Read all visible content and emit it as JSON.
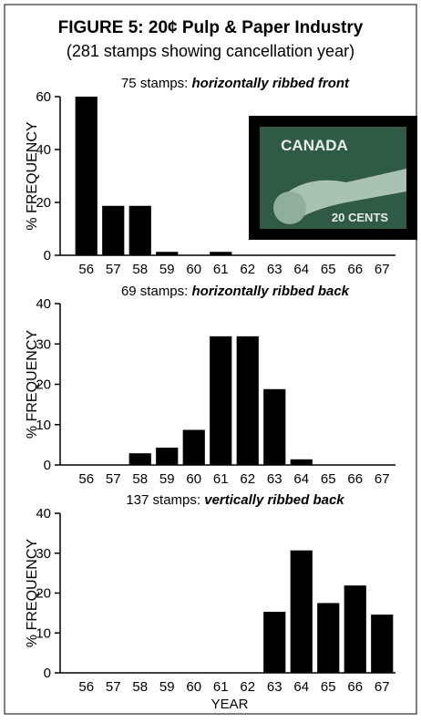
{
  "title": "FIGURE 5: 20¢ Pulp & Paper Industry",
  "subtitle": "(281 stamps showing cancellation year)",
  "stamp": {
    "country": "CANADA",
    "denomination": "20 CENTS"
  },
  "chart_data": [
    {
      "type": "bar",
      "title": {
        "count": "75 stamps:",
        "description": "horizontally ribbed front"
      },
      "ylabel": "% FREQUENCY",
      "categories": [
        "56",
        "57",
        "58",
        "59",
        "60",
        "61",
        "62",
        "63",
        "64",
        "65",
        "66",
        "67"
      ],
      "values": [
        60,
        18.7,
        18.7,
        1.3,
        0,
        1.3,
        0,
        0,
        0,
        0,
        0,
        0
      ],
      "color": "#000000",
      "ylim": [
        0,
        60
      ],
      "yticks": [
        0,
        20,
        40,
        60
      ]
    },
    {
      "type": "bar",
      "title": {
        "count": "69 stamps:",
        "description": "horizontally ribbed back"
      },
      "ylabel": "% FREQUENCY",
      "categories": [
        "56",
        "57",
        "58",
        "59",
        "60",
        "61",
        "62",
        "63",
        "64",
        "65",
        "66",
        "67"
      ],
      "values": [
        0,
        0,
        2.9,
        4.3,
        8.7,
        31.9,
        31.9,
        18.8,
        1.4,
        0,
        0,
        0
      ],
      "color": "#000000",
      "ylim": [
        0,
        40
      ],
      "yticks": [
        0,
        10,
        20,
        30,
        40
      ]
    },
    {
      "type": "bar",
      "title": {
        "count": "137 stamps:",
        "description": "vertically ribbed back"
      },
      "ylabel": "% FREQUENCY",
      "xlabel": "YEAR",
      "categories": [
        "56",
        "57",
        "58",
        "59",
        "60",
        "61",
        "62",
        "63",
        "64",
        "65",
        "66",
        "67"
      ],
      "values": [
        0,
        0,
        0,
        0,
        0,
        0,
        0,
        15.3,
        30.7,
        17.5,
        21.9,
        14.6
      ],
      "color": "#000000",
      "ylim": [
        0,
        40
      ],
      "yticks": [
        0,
        10,
        20,
        30,
        40
      ]
    }
  ]
}
